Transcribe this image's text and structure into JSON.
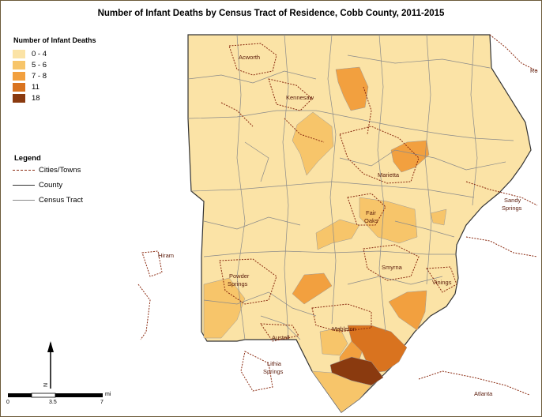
{
  "title": "Number of Infant Deaths by Census Tract of Residence, Cobb County, 2011-2015",
  "legend_classes": {
    "title": "Number of Infant Deaths",
    "items": [
      {
        "label": "0 - 4",
        "color": "#fbe3a6"
      },
      {
        "label": "5 - 6",
        "color": "#f7c56a"
      },
      {
        "label": "7 - 8",
        "color": "#f2a03f"
      },
      {
        "label": "11",
        "color": "#d9731f"
      },
      {
        "label": "18",
        "color": "#8a3a0f"
      }
    ]
  },
  "legend_lines": {
    "title": "Legend",
    "items": [
      {
        "label": "Cities/Towns",
        "style": "dashed",
        "color": "#8a2a10"
      },
      {
        "label": "County",
        "style": "solid",
        "color": "#333333"
      },
      {
        "label": "Census Tract",
        "style": "solid",
        "color": "#888888"
      }
    ]
  },
  "places": {
    "acworth": "Acworth",
    "kennesaw": "Kennesaw",
    "marietta": "Marietta",
    "fair": "Fair",
    "oaks": "Oaks",
    "sandy": "Sandy",
    "springs": "Springs",
    "powder": "Powder",
    "springs2": "Springs",
    "hiram": "Hiram",
    "smyrna": "Smyrna",
    "vinings": "Vinings",
    "austell": "Austell",
    "mableton": "Mableton",
    "lithia": "Lithia",
    "springs3": "Springs",
    "atlanta": "Atlanta",
    "ro": "Ro"
  },
  "scale": {
    "labels": [
      "0",
      "3.5",
      "7"
    ],
    "unit": "mi"
  },
  "north_arrow": "N"
}
